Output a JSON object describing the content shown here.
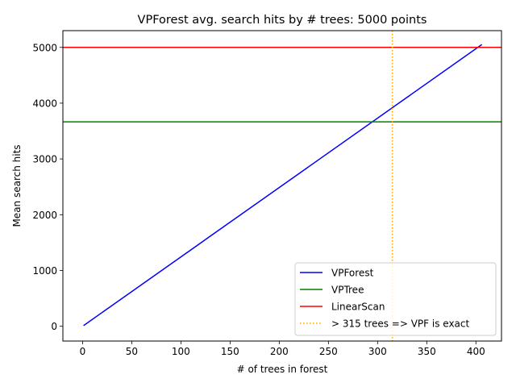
{
  "chart_data": {
    "type": "line",
    "title": "VPForest avg. search hits by # trees: 5000 points",
    "xlabel": "# of trees in forest",
    "ylabel": "Mean search hits",
    "xlim": [
      -20,
      426
    ],
    "ylim": [
      -265,
      5300
    ],
    "xticks": [
      0,
      50,
      100,
      150,
      200,
      250,
      300,
      350,
      400
    ],
    "yticks": [
      0,
      1000,
      2000,
      3000,
      4000,
      5000
    ],
    "grid": false,
    "legend_position": "lower right",
    "series": [
      {
        "name": "VPForest",
        "kind": "line",
        "color": "#0000ff",
        "x": [
          1,
          406
        ],
        "y": [
          12,
          5050
        ]
      },
      {
        "name": "VPTree",
        "kind": "hline",
        "color": "#008000",
        "y": 3665
      },
      {
        "name": "LinearScan",
        "kind": "hline",
        "color": "#ff0000",
        "y": 5000
      },
      {
        "name": "> 315 trees => VPF is exact",
        "kind": "vline",
        "color": "#ffa500",
        "dashed": true,
        "x": 315
      }
    ]
  }
}
